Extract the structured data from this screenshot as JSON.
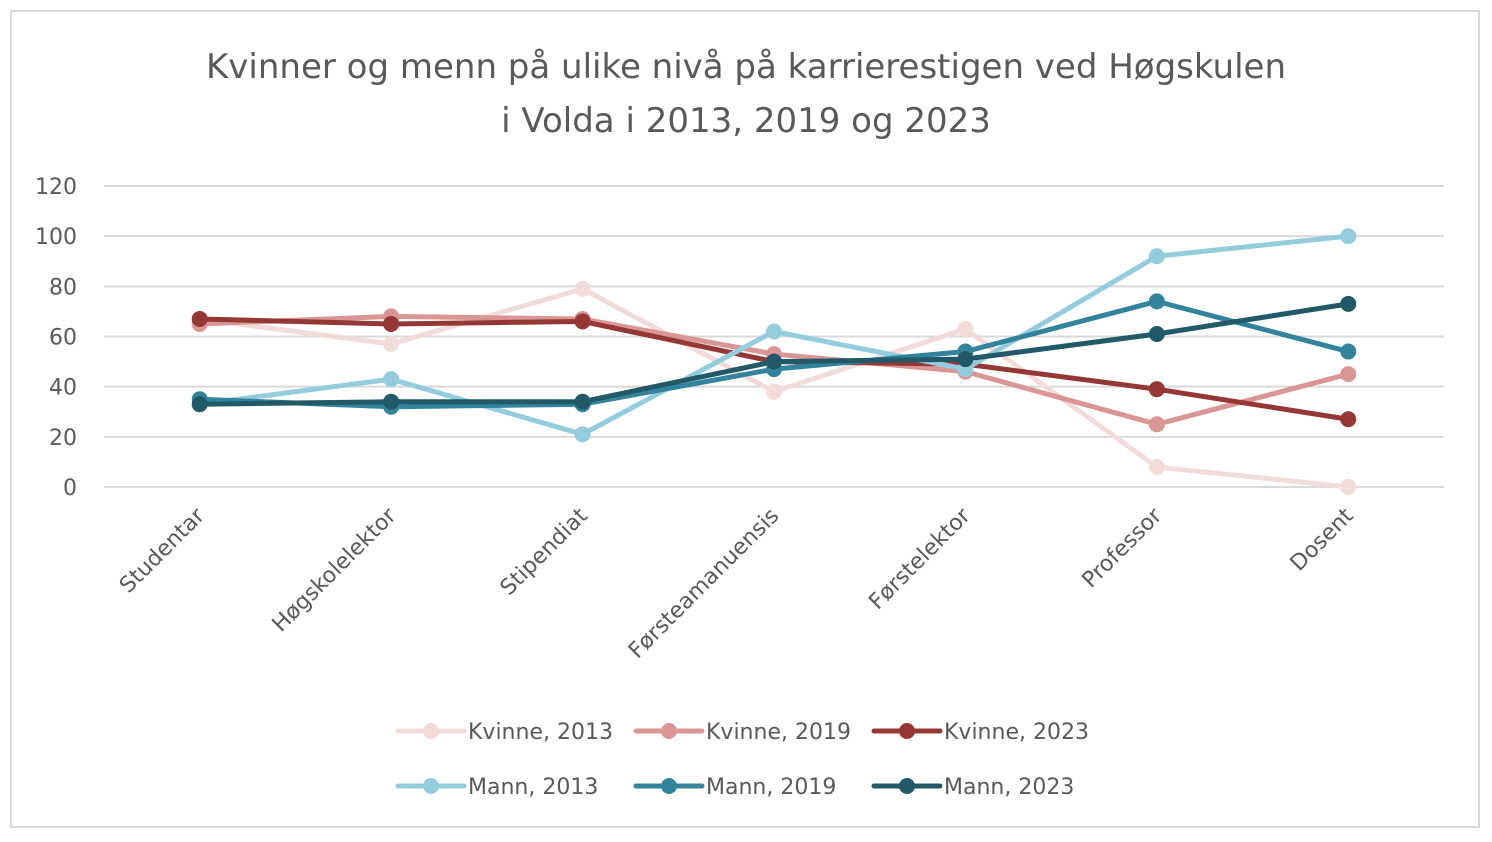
{
  "chart_data": {
    "type": "line",
    "title_line1": "Kvinner og menn på ulike nivå på karrierestigen ved Høgskulen",
    "title_line2": "i Volda i 2013, 2019 og 2023",
    "categories": [
      "Studentar",
      "Høgskolelektor",
      "Stipendiat",
      "Førsteamanuensis",
      "Førstelektor",
      "Professor",
      "Dosent"
    ],
    "ylim": [
      0,
      120
    ],
    "yticks": [
      0,
      20,
      40,
      60,
      80,
      100,
      120
    ],
    "grid": true,
    "legend_position": "bottom",
    "series": [
      {
        "name": "Kvinne, 2013",
        "color": "#f2dcdb",
        "values": [
          67,
          57,
          79,
          38,
          63,
          8,
          0
        ]
      },
      {
        "name": "Kvinne, 2019",
        "color": "#d99694",
        "values": [
          65,
          68,
          67,
          53,
          46,
          25,
          45
        ]
      },
      {
        "name": "Kvinne, 2023",
        "color": "#953735",
        "values": [
          67,
          65,
          66,
          50,
          49,
          39,
          27
        ]
      },
      {
        "name": "Mann, 2013",
        "color": "#93cddd",
        "values": [
          33,
          43,
          21,
          62,
          47,
          92,
          100
        ]
      },
      {
        "name": "Mann, 2019",
        "color": "#31849b",
        "values": [
          35,
          32,
          33,
          47,
          54,
          74,
          54
        ]
      },
      {
        "name": "Mann, 2023",
        "color": "#215968",
        "values": [
          33,
          34,
          34,
          50,
          51,
          61,
          73
        ]
      }
    ]
  }
}
